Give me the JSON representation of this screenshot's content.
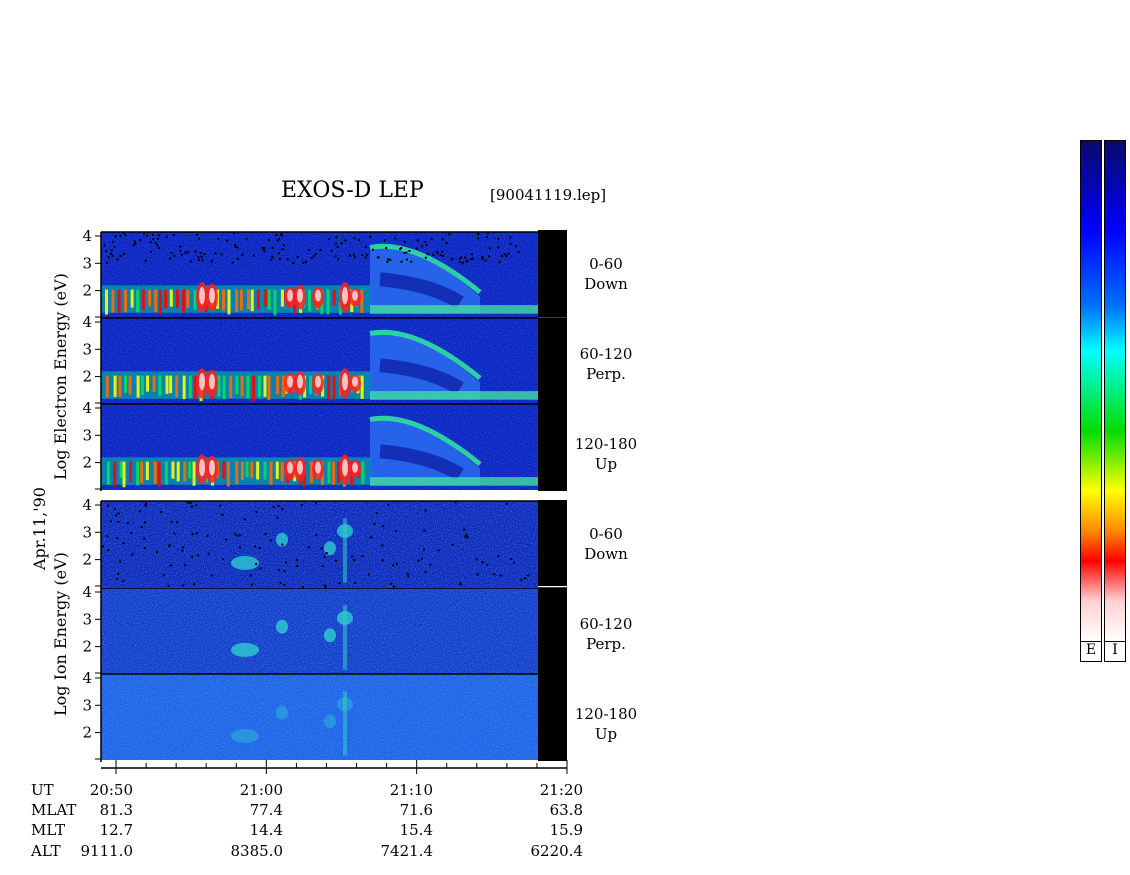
{
  "chart_data": {
    "type": "heatmap",
    "title": "EXOS-D LEP",
    "file_label": "[90041119.lep]",
    "date_label": "Apr.11,'90",
    "x_axis": {
      "quantity": "UT",
      "range": [
        "20:49",
        "21:20"
      ],
      "major_ticks": [
        "20:50",
        "21:00",
        "21:10",
        "21:20"
      ]
    },
    "y_axis_range": [
      1,
      4
    ],
    "y_ticks": [
      "4",
      "3",
      "2"
    ],
    "groups": [
      {
        "ylabel": "Log  Electron  Energy (eV)",
        "panels": [
          {
            "range": "0-60",
            "direction": "Down"
          },
          {
            "range": "60-120",
            "direction": "Perp."
          },
          {
            "range": "120-180",
            "direction": "Up"
          }
        ]
      },
      {
        "ylabel": "Log  Ion  Energy (eV)",
        "panels": [
          {
            "range": "0-60",
            "direction": "Down"
          },
          {
            "range": "60-120",
            "direction": "Perp."
          },
          {
            "range": "120-180",
            "direction": "Up"
          }
        ]
      }
    ],
    "ephemeris": {
      "rows": [
        {
          "name": "UT",
          "values": [
            "20:50",
            "21:00",
            "21:10",
            "21:20"
          ]
        },
        {
          "name": "MLAT",
          "values": [
            "81.3",
            "77.4",
            "71.6",
            "63.8"
          ]
        },
        {
          "name": "MLT",
          "values": [
            "12.7",
            "14.4",
            "15.4",
            "15.9"
          ]
        },
        {
          "name": "ALT",
          "values": [
            "9111.0",
            "8385.0",
            "7421.4",
            "6220.4"
          ]
        }
      ]
    },
    "colorbars": [
      {
        "label": "E"
      },
      {
        "label": "I"
      }
    ],
    "colormap": [
      "#ffffff",
      "#ff0000",
      "#ff9900",
      "#ffff00",
      "#00cc00",
      "#00ffff",
      "#0066ff",
      "#0000ff",
      "#000066"
    ]
  }
}
